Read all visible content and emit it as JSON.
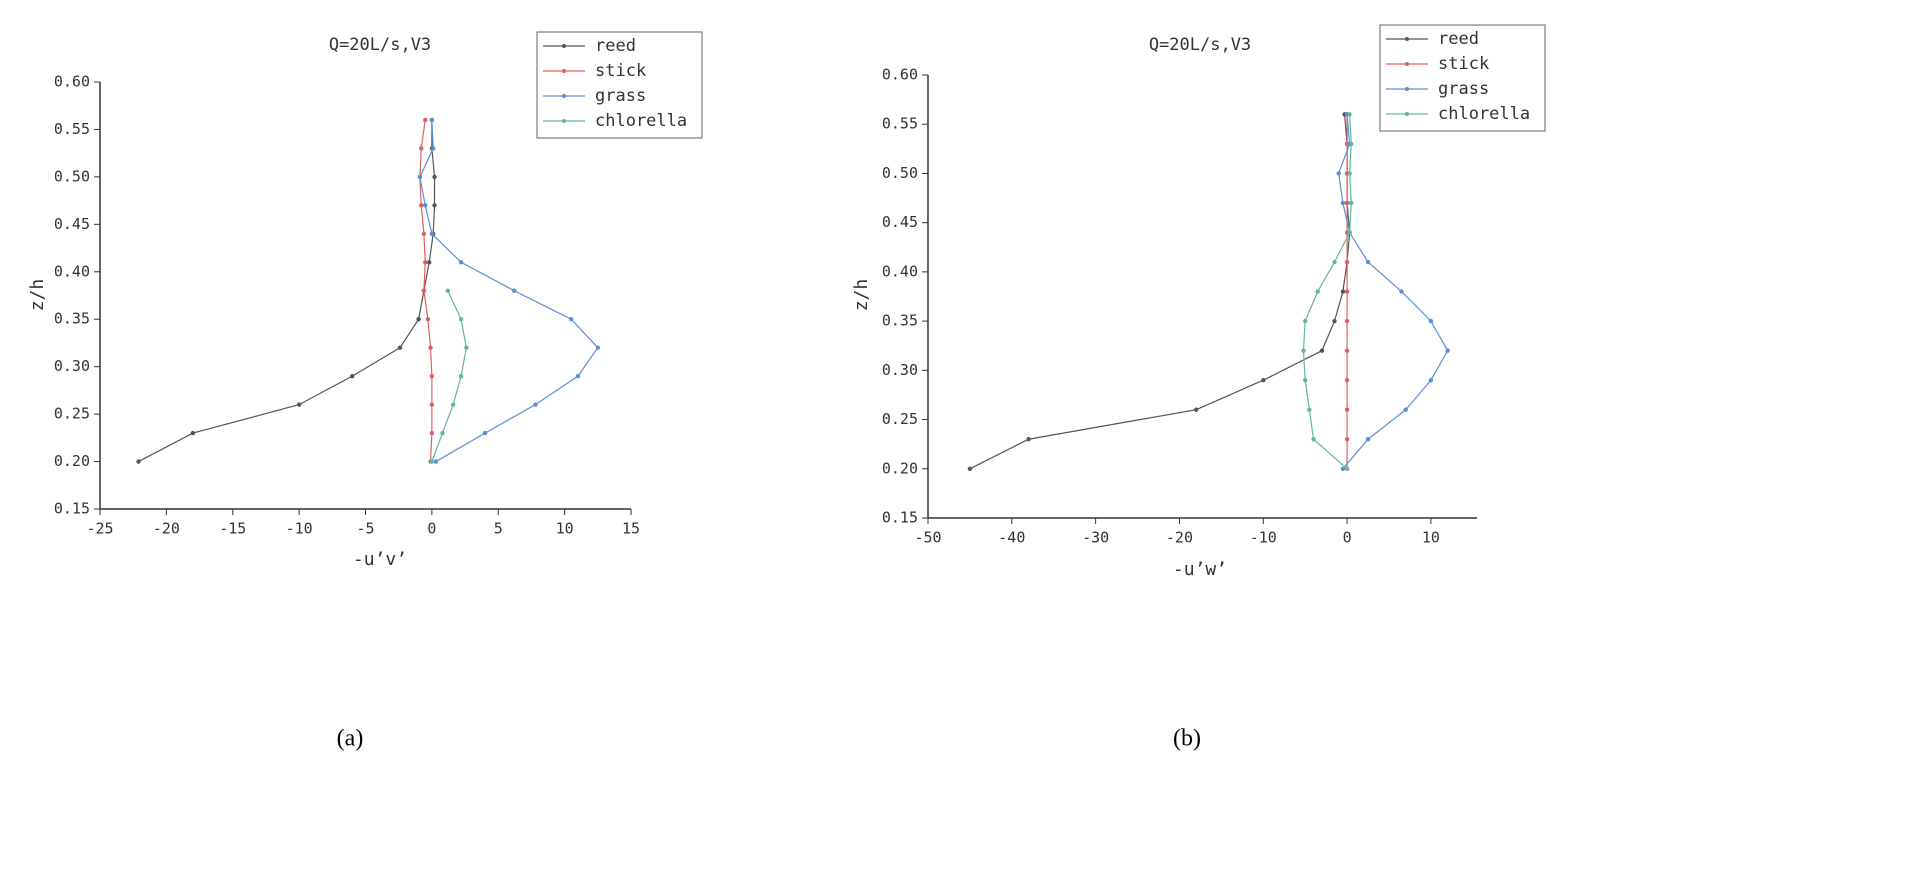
{
  "chart_data": [
    {
      "type": "line",
      "title": "Q=20L/s,V3",
      "xlabel": "-u’v’",
      "ylabel": "z/h",
      "caption": "(a)",
      "xlim": [
        -25,
        15
      ],
      "xticks": [
        -25,
        -20,
        -15,
        -10,
        -5,
        0,
        5,
        10,
        15
      ],
      "ylim": [
        0.15,
        0.6
      ],
      "yticks": [
        0.15,
        {
          "value": 0.2,
          "label": "0.20"
        },
        0.25,
        {
          "value": 0.3,
          "label": "0.30"
        },
        0.35,
        {
          "value": 0.4,
          "label": "0.40"
        },
        0.45,
        {
          "value": 0.5,
          "label": "0.50"
        },
        0.55,
        {
          "value": 0.6,
          "label": "0.60"
        }
      ],
      "series": [
        {
          "name": "reed",
          "color": "#555555",
          "x": [
            -22.1,
            -18,
            -10,
            -6,
            -2.4,
            -1,
            -0.6,
            -0.2,
            0.1,
            0.2,
            0.2,
            0,
            0
          ],
          "values": [
            0.2,
            0.23,
            0.26,
            0.29,
            0.32,
            0.35,
            0.38,
            0.41,
            0.44,
            0.47,
            0.5,
            0.53,
            0.56
          ]
        },
        {
          "name": "stick",
          "color": "#e06060",
          "x": [
            -0.1,
            0,
            0,
            0,
            -0.1,
            -0.3,
            -0.6,
            -0.5,
            -0.6,
            -0.8,
            -0.9,
            -0.8,
            -0.5
          ],
          "values": [
            0.2,
            0.23,
            0.26,
            0.29,
            0.32,
            0.35,
            0.38,
            0.41,
            0.44,
            0.47,
            0.5,
            0.53,
            0.56
          ]
        },
        {
          "name": "grass",
          "color": "#5b8fd6",
          "x": [
            0.3,
            4,
            7.8,
            11,
            12.5,
            10.5,
            6.2,
            2.2,
            0,
            -0.5,
            -0.9,
            0.1,
            0
          ],
          "values": [
            0.2,
            0.23,
            0.26,
            0.29,
            0.32,
            0.35,
            0.38,
            0.41,
            0.44,
            0.47,
            0.5,
            0.53,
            0.56
          ]
        },
        {
          "name": "chlorella",
          "color": "#5fb89a",
          "x": [
            0,
            0.8,
            1.6,
            2.2,
            2.6,
            2.2,
            1.2
          ],
          "values": [
            0.2,
            0.23,
            0.26,
            0.29,
            0.32,
            0.35,
            0.38
          ]
        }
      ]
    },
    {
      "type": "line",
      "title": "Q=20L/s,V3",
      "xlabel": "-u’w’",
      "ylabel": "z/h",
      "caption": "(b)",
      "xlim": [
        -50,
        15.5
      ],
      "xticks": [
        -50,
        -40,
        -30,
        -20,
        -10,
        0,
        10
      ],
      "ylim": [
        0.15,
        0.6
      ],
      "yticks": [
        0.15,
        {
          "value": 0.2,
          "label": "0.20"
        },
        0.25,
        {
          "value": 0.3,
          "label": "0.30"
        },
        0.35,
        {
          "value": 0.4,
          "label": "0.40"
        },
        0.45,
        {
          "value": 0.5,
          "label": "0.50"
        },
        0.55,
        {
          "value": 0.6,
          "label": "0.60"
        }
      ],
      "series": [
        {
          "name": "reed",
          "color": "#555555",
          "x": [
            -45,
            -38,
            -18,
            -10,
            -3,
            -1.5,
            -0.5,
            0,
            0.3,
            0,
            0,
            0,
            -0.3
          ],
          "values": [
            0.2,
            0.23,
            0.26,
            0.29,
            0.32,
            0.35,
            0.38,
            0.41,
            0.44,
            0.47,
            0.5,
            0.53,
            0.56
          ]
        },
        {
          "name": "stick",
          "color": "#e06060",
          "x": [
            0,
            0,
            0,
            0,
            0,
            0,
            0,
            0,
            0,
            0,
            0,
            0,
            0
          ],
          "values": [
            0.2,
            0.23,
            0.26,
            0.29,
            0.32,
            0.35,
            0.38,
            0.41,
            0.44,
            0.47,
            0.5,
            0.53,
            0.56
          ]
        },
        {
          "name": "grass",
          "color": "#5b8fd6",
          "x": [
            -0.5,
            2.5,
            7,
            10,
            12,
            10,
            6.5,
            2.5,
            0.3,
            -0.5,
            -1,
            0.3,
            0
          ],
          "values": [
            0.2,
            0.23,
            0.26,
            0.29,
            0.32,
            0.35,
            0.38,
            0.41,
            0.44,
            0.47,
            0.5,
            0.53,
            0.56
          ]
        },
        {
          "name": "chlorella",
          "color": "#5fb89a",
          "x": [
            0,
            -4,
            -4.5,
            -5,
            -5.2,
            -5,
            -3.5,
            -1.5,
            0.3,
            0.5,
            0.3,
            0.5,
            0.3
          ],
          "values": [
            0.2,
            0.23,
            0.26,
            0.29,
            0.32,
            0.35,
            0.38,
            0.41,
            0.44,
            0.47,
            0.5,
            0.53,
            0.56
          ]
        }
      ]
    }
  ]
}
